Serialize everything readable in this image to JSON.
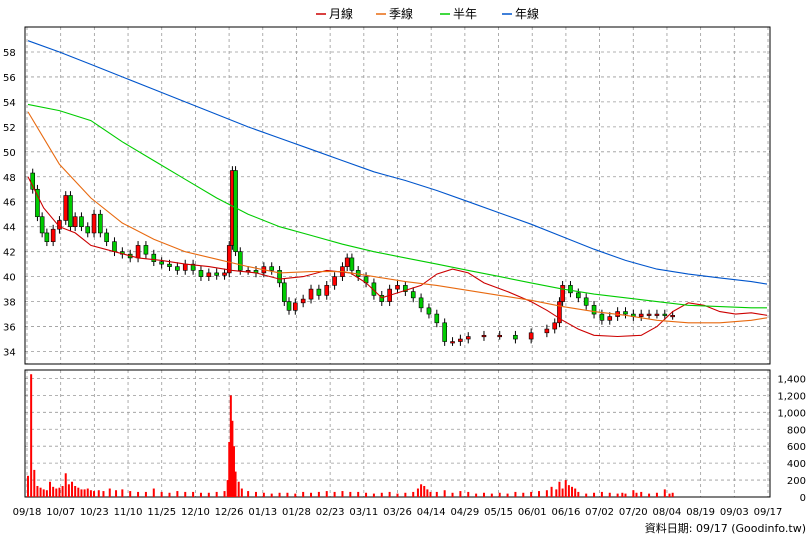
{
  "chart_data": {
    "type": "candlestick",
    "legend": [
      {
        "name": "月線",
        "color": "#cc0000"
      },
      {
        "name": "季線",
        "color": "#e86a10"
      },
      {
        "name": "半年",
        "color": "#00cc00"
      },
      {
        "name": "年線",
        "color": "#0055cc"
      }
    ],
    "price_axis": {
      "ylim": [
        33,
        60
      ],
      "ticks": [
        34,
        36,
        38,
        40,
        42,
        44,
        46,
        48,
        50,
        52,
        54,
        56,
        58
      ]
    },
    "volume_axis": {
      "ylim": [
        0,
        1500
      ],
      "ticks": [
        "0",
        "200",
        "400",
        "600",
        "800",
        "1,000",
        "1,200",
        "1,400"
      ]
    },
    "dates": [
      "09/18",
      "10/07",
      "10/23",
      "11/10",
      "11/25",
      "12/10",
      "12/26",
      "01/13",
      "01/28",
      "02/23",
      "03/11",
      "03/26",
      "04/14",
      "04/29",
      "05/15",
      "06/01",
      "06/16",
      "07/02",
      "07/20",
      "08/04",
      "08/19",
      "09/03",
      "09/17"
    ],
    "grid": true,
    "colors": {
      "up": "#ff0000",
      "down": "#00cc00",
      "volume": "#ff0000",
      "grid": "#999999"
    },
    "ma_lines": {
      "月線": [
        [
          0,
          48.0
        ],
        [
          10,
          45.5
        ],
        [
          20,
          44.0
        ],
        [
          30,
          43.5
        ],
        [
          40,
          42.5
        ],
        [
          55,
          42.0
        ],
        [
          70,
          41.5
        ],
        [
          85,
          41.3
        ],
        [
          100,
          41.0
        ],
        [
          115,
          40.8
        ],
        [
          130,
          40.5
        ],
        [
          145,
          40.3
        ],
        [
          160,
          39.8
        ],
        [
          175,
          40.0
        ],
        [
          190,
          40.5
        ],
        [
          205,
          40.3
        ],
        [
          215,
          39.5
        ],
        [
          225,
          38.3
        ],
        [
          235,
          38.7
        ],
        [
          250,
          39.3
        ],
        [
          260,
          40.2
        ],
        [
          270,
          40.6
        ],
        [
          280,
          40.3
        ],
        [
          290,
          39.5
        ],
        [
          305,
          38.8
        ],
        [
          320,
          38.0
        ],
        [
          330,
          37.3
        ],
        [
          340,
          36.5
        ],
        [
          350,
          35.8
        ],
        [
          360,
          35.3
        ],
        [
          375,
          35.2
        ],
        [
          390,
          35.3
        ],
        [
          400,
          36.0
        ],
        [
          410,
          37.2
        ],
        [
          420,
          37.9
        ],
        [
          430,
          37.7
        ],
        [
          440,
          37.2
        ],
        [
          450,
          37.0
        ],
        [
          460,
          37.1
        ],
        [
          470,
          36.9
        ]
      ],
      "季線": [
        [
          0,
          53.2
        ],
        [
          20,
          49.0
        ],
        [
          40,
          46.3
        ],
        [
          60,
          44.3
        ],
        [
          80,
          43.0
        ],
        [
          100,
          42.0
        ],
        [
          120,
          41.4
        ],
        [
          140,
          40.8
        ],
        [
          160,
          40.3
        ],
        [
          180,
          40.4
        ],
        [
          200,
          40.4
        ],
        [
          220,
          40.0
        ],
        [
          240,
          39.6
        ],
        [
          260,
          39.3
        ],
        [
          280,
          38.9
        ],
        [
          300,
          38.5
        ],
        [
          320,
          38.1
        ],
        [
          340,
          37.6
        ],
        [
          360,
          37.2
        ],
        [
          380,
          36.9
        ],
        [
          400,
          36.5
        ],
        [
          420,
          36.3
        ],
        [
          440,
          36.3
        ],
        [
          460,
          36.5
        ],
        [
          470,
          36.7
        ]
      ],
      "半年": [
        [
          0,
          53.8
        ],
        [
          20,
          53.3
        ],
        [
          40,
          52.5
        ],
        [
          60,
          50.8
        ],
        [
          80,
          49.3
        ],
        [
          100,
          47.8
        ],
        [
          120,
          46.3
        ],
        [
          140,
          45.0
        ],
        [
          160,
          44.0
        ],
        [
          180,
          43.3
        ],
        [
          200,
          42.6
        ],
        [
          220,
          42.0
        ],
        [
          240,
          41.5
        ],
        [
          260,
          41.0
        ],
        [
          280,
          40.5
        ],
        [
          300,
          40.0
        ],
        [
          320,
          39.5
        ],
        [
          340,
          39.0
        ],
        [
          360,
          38.6
        ],
        [
          380,
          38.3
        ],
        [
          400,
          38.0
        ],
        [
          420,
          37.7
        ],
        [
          440,
          37.6
        ],
        [
          460,
          37.5
        ],
        [
          470,
          37.5
        ]
      ],
      "年線": [
        [
          0,
          58.9
        ],
        [
          20,
          58.0
        ],
        [
          40,
          57.0
        ],
        [
          60,
          56.0
        ],
        [
          80,
          55.0
        ],
        [
          100,
          54.0
        ],
        [
          120,
          53.0
        ],
        [
          140,
          52.0
        ],
        [
          160,
          51.1
        ],
        [
          180,
          50.2
        ],
        [
          200,
          49.3
        ],
        [
          220,
          48.4
        ],
        [
          240,
          47.7
        ],
        [
          260,
          46.9
        ],
        [
          280,
          46.0
        ],
        [
          300,
          45.1
        ],
        [
          320,
          44.2
        ],
        [
          340,
          43.2
        ],
        [
          360,
          42.2
        ],
        [
          380,
          41.3
        ],
        [
          400,
          40.6
        ],
        [
          420,
          40.2
        ],
        [
          440,
          39.9
        ],
        [
          460,
          39.6
        ],
        [
          470,
          39.4
        ]
      ]
    },
    "price_outline": [
      [
        0,
        48.3
      ],
      [
        3,
        47.0
      ],
      [
        6,
        44.8
      ],
      [
        9,
        43.5
      ],
      [
        12,
        42.8
      ],
      [
        16,
        43.8
      ],
      [
        20,
        44.5
      ],
      [
        24,
        46.5
      ],
      [
        27,
        44.0
      ],
      [
        30,
        44.8
      ],
      [
        34,
        44.0
      ],
      [
        38,
        43.5
      ],
      [
        42,
        45.0
      ],
      [
        46,
        43.5
      ],
      [
        50,
        42.8
      ],
      [
        55,
        42.0
      ],
      [
        60,
        41.8
      ],
      [
        65,
        41.5
      ],
      [
        70,
        42.5
      ],
      [
        75,
        41.8
      ],
      [
        80,
        41.2
      ],
      [
        85,
        41.0
      ],
      [
        90,
        40.8
      ],
      [
        95,
        40.5
      ],
      [
        100,
        41.0
      ],
      [
        105,
        40.5
      ],
      [
        110,
        40.0
      ],
      [
        115,
        40.3
      ],
      [
        120,
        40.1
      ],
      [
        125,
        40.3
      ],
      [
        128,
        42.5
      ],
      [
        130,
        48.5
      ],
      [
        132,
        42.0
      ],
      [
        135,
        40.5
      ],
      [
        140,
        40.5
      ],
      [
        145,
        40.3
      ],
      [
        150,
        40.8
      ],
      [
        155,
        40.5
      ],
      [
        160,
        39.5
      ],
      [
        163,
        38.0
      ],
      [
        166,
        37.3
      ],
      [
        170,
        37.9
      ],
      [
        175,
        38.2
      ],
      [
        180,
        39.0
      ],
      [
        185,
        38.5
      ],
      [
        190,
        39.3
      ],
      [
        195,
        40.0
      ],
      [
        200,
        40.8
      ],
      [
        203,
        41.5
      ],
      [
        206,
        40.5
      ],
      [
        210,
        40.0
      ],
      [
        215,
        39.5
      ],
      [
        220,
        38.5
      ],
      [
        225,
        38.0
      ],
      [
        230,
        39.0
      ],
      [
        235,
        39.3
      ],
      [
        240,
        38.8
      ],
      [
        245,
        38.3
      ],
      [
        250,
        37.5
      ],
      [
        255,
        37.0
      ],
      [
        260,
        36.3
      ],
      [
        265,
        34.8
      ],
      [
        270,
        34.8
      ],
      [
        275,
        35.0
      ],
      [
        280,
        35.2
      ],
      [
        290,
        35.3
      ],
      [
        300,
        35.3
      ],
      [
        310,
        35.0
      ],
      [
        320,
        35.5
      ],
      [
        330,
        35.8
      ],
      [
        335,
        36.3
      ],
      [
        338,
        38.0
      ],
      [
        340,
        39.3
      ],
      [
        345,
        38.7
      ],
      [
        350,
        38.3
      ],
      [
        355,
        37.7
      ],
      [
        360,
        37.0
      ],
      [
        365,
        36.5
      ],
      [
        370,
        36.8
      ],
      [
        375,
        37.2
      ],
      [
        380,
        37.0
      ],
      [
        385,
        36.8
      ],
      [
        390,
        37.0
      ],
      [
        395,
        37.0
      ],
      [
        400,
        37.0
      ],
      [
        405,
        36.9
      ],
      [
        410,
        36.9
      ]
    ],
    "volume_bars": [
      [
        0,
        250
      ],
      [
        2,
        1450
      ],
      [
        4,
        320
      ],
      [
        6,
        130
      ],
      [
        8,
        110
      ],
      [
        10,
        90
      ],
      [
        12,
        80
      ],
      [
        14,
        180
      ],
      [
        16,
        120
      ],
      [
        18,
        100
      ],
      [
        20,
        110
      ],
      [
        22,
        130
      ],
      [
        24,
        280
      ],
      [
        26,
        150
      ],
      [
        28,
        180
      ],
      [
        30,
        130
      ],
      [
        32,
        110
      ],
      [
        34,
        90
      ],
      [
        36,
        90
      ],
      [
        38,
        100
      ],
      [
        40,
        80
      ],
      [
        42,
        70
      ],
      [
        45,
        80
      ],
      [
        48,
        70
      ],
      [
        52,
        100
      ],
      [
        56,
        80
      ],
      [
        60,
        90
      ],
      [
        65,
        70
      ],
      [
        70,
        60
      ],
      [
        75,
        60
      ],
      [
        80,
        100
      ],
      [
        85,
        60
      ],
      [
        90,
        50
      ],
      [
        95,
        70
      ],
      [
        100,
        60
      ],
      [
        105,
        60
      ],
      [
        110,
        50
      ],
      [
        115,
        50
      ],
      [
        120,
        60
      ],
      [
        125,
        70
      ],
      [
        127,
        200
      ],
      [
        128,
        650
      ],
      [
        129,
        1200
      ],
      [
        130,
        900
      ],
      [
        131,
        600
      ],
      [
        132,
        300
      ],
      [
        134,
        180
      ],
      [
        136,
        100
      ],
      [
        140,
        70
      ],
      [
        145,
        60
      ],
      [
        150,
        50
      ],
      [
        155,
        40
      ],
      [
        160,
        50
      ],
      [
        165,
        50
      ],
      [
        170,
        40
      ],
      [
        175,
        60
      ],
      [
        180,
        50
      ],
      [
        185,
        60
      ],
      [
        190,
        70
      ],
      [
        195,
        60
      ],
      [
        200,
        70
      ],
      [
        205,
        60
      ],
      [
        210,
        60
      ],
      [
        215,
        50
      ],
      [
        220,
        40
      ],
      [
        225,
        50
      ],
      [
        230,
        60
      ],
      [
        235,
        40
      ],
      [
        240,
        50
      ],
      [
        245,
        60
      ],
      [
        248,
        100
      ],
      [
        250,
        150
      ],
      [
        252,
        130
      ],
      [
        254,
        90
      ],
      [
        256,
        60
      ],
      [
        260,
        60
      ],
      [
        265,
        80
      ],
      [
        270,
        50
      ],
      [
        275,
        70
      ],
      [
        280,
        60
      ],
      [
        285,
        40
      ],
      [
        290,
        50
      ],
      [
        295,
        40
      ],
      [
        300,
        50
      ],
      [
        305,
        40
      ],
      [
        310,
        60
      ],
      [
        315,
        50
      ],
      [
        320,
        60
      ],
      [
        325,
        70
      ],
      [
        330,
        80
      ],
      [
        333,
        120
      ],
      [
        336,
        90
      ],
      [
        338,
        180
      ],
      [
        340,
        100
      ],
      [
        342,
        200
      ],
      [
        344,
        140
      ],
      [
        346,
        120
      ],
      [
        348,
        100
      ],
      [
        350,
        60
      ],
      [
        355,
        40
      ],
      [
        360,
        50
      ],
      [
        365,
        60
      ],
      [
        370,
        50
      ],
      [
        375,
        40
      ],
      [
        378,
        50
      ],
      [
        380,
        40
      ],
      [
        385,
        80
      ],
      [
        387,
        50
      ],
      [
        390,
        60
      ],
      [
        395,
        40
      ],
      [
        400,
        50
      ],
      [
        405,
        90
      ],
      [
        408,
        40
      ],
      [
        410,
        50
      ]
    ]
  },
  "footer": {
    "text": "資料日期: 09/17  (Goodinfo.tw)"
  }
}
